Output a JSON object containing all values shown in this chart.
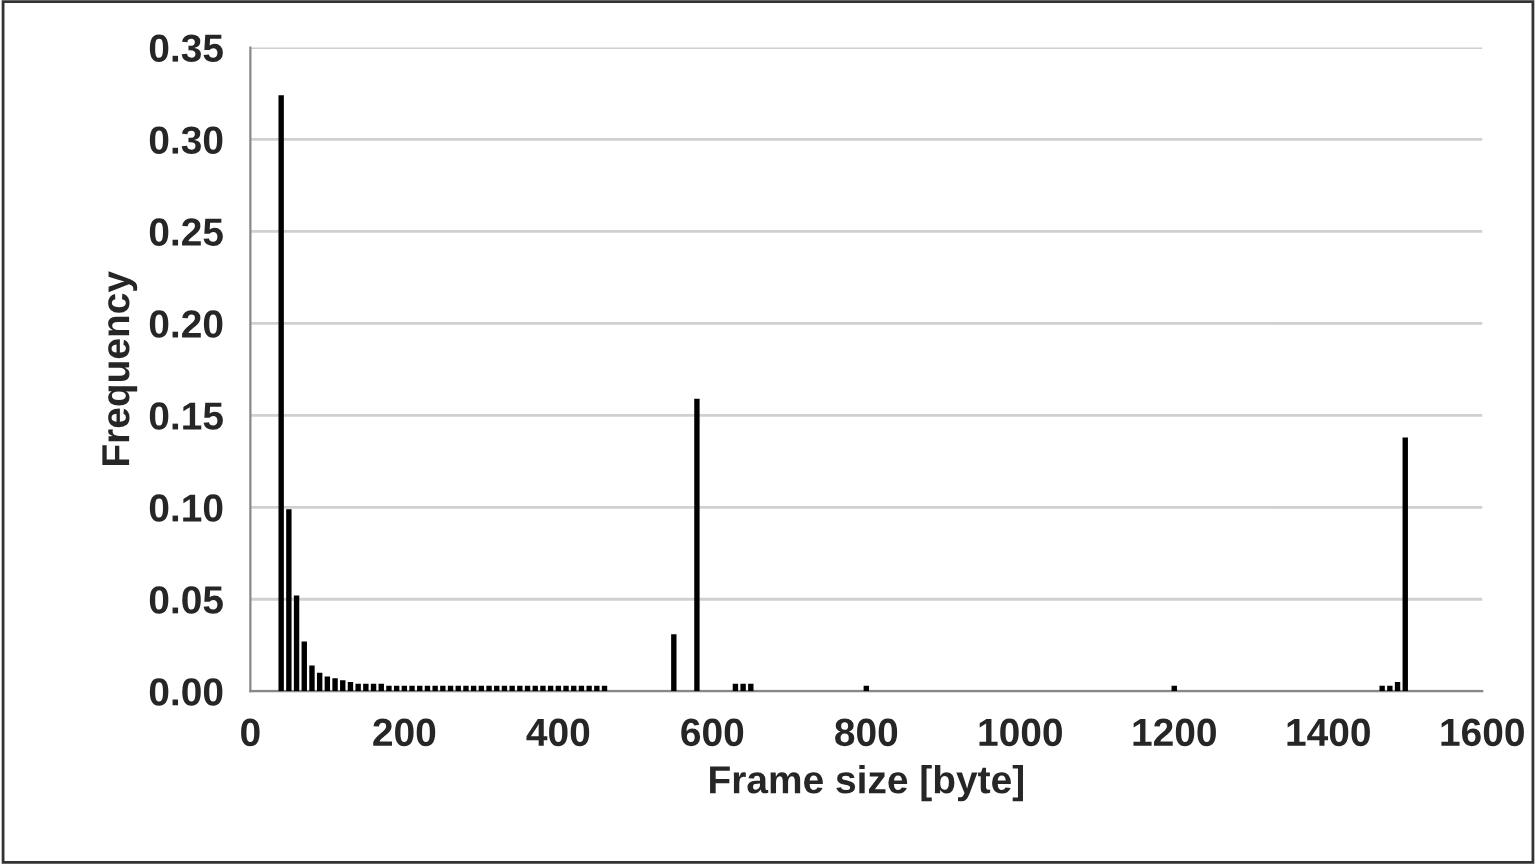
{
  "chart_data": {
    "type": "bar",
    "xlabel": "Frame size [byte]",
    "ylabel": "Frequency",
    "x": [
      40,
      50,
      60,
      70,
      80,
      90,
      100,
      110,
      120,
      130,
      140,
      150,
      160,
      170,
      180,
      190,
      200,
      210,
      220,
      230,
      240,
      250,
      260,
      270,
      280,
      290,
      300,
      310,
      320,
      330,
      340,
      350,
      360,
      370,
      380,
      390,
      400,
      410,
      420,
      430,
      440,
      450,
      460,
      550,
      580,
      630,
      640,
      650,
      800,
      1200,
      1470,
      1480,
      1490,
      1500
    ],
    "values": [
      0.324,
      0.099,
      0.052,
      0.027,
      0.014,
      0.01,
      0.008,
      0.007,
      0.006,
      0.005,
      0.004,
      0.004,
      0.004,
      0.004,
      0.003,
      0.003,
      0.003,
      0.003,
      0.003,
      0.003,
      0.003,
      0.003,
      0.003,
      0.003,
      0.003,
      0.003,
      0.003,
      0.003,
      0.003,
      0.003,
      0.003,
      0.003,
      0.003,
      0.003,
      0.003,
      0.003,
      0.003,
      0.003,
      0.003,
      0.003,
      0.003,
      0.003,
      0.003,
      0.031,
      0.159,
      0.004,
      0.004,
      0.004,
      0.003,
      0.003,
      0.003,
      0.003,
      0.005,
      0.138
    ],
    "color": "#000000",
    "xlim": [
      0,
      1600
    ],
    "xticks": [
      0,
      200,
      400,
      600,
      800,
      1000,
      1200,
      1400,
      1600
    ],
    "ylim": [
      0,
      0.35
    ],
    "yticks": [
      {
        "value": 0,
        "label": "0.00"
      },
      {
        "value": 0.05,
        "label": "0.05"
      },
      {
        "value": 0.1,
        "label": "0.10"
      },
      {
        "value": 0.15,
        "label": "0.15"
      },
      {
        "value": 0.2,
        "label": "0.20"
      },
      {
        "value": 0.25,
        "label": "0.25"
      },
      {
        "value": 0.3,
        "label": "0.30"
      },
      {
        "value": 0.35,
        "label": "0.35"
      }
    ],
    "grid": "y",
    "legend": false
  }
}
